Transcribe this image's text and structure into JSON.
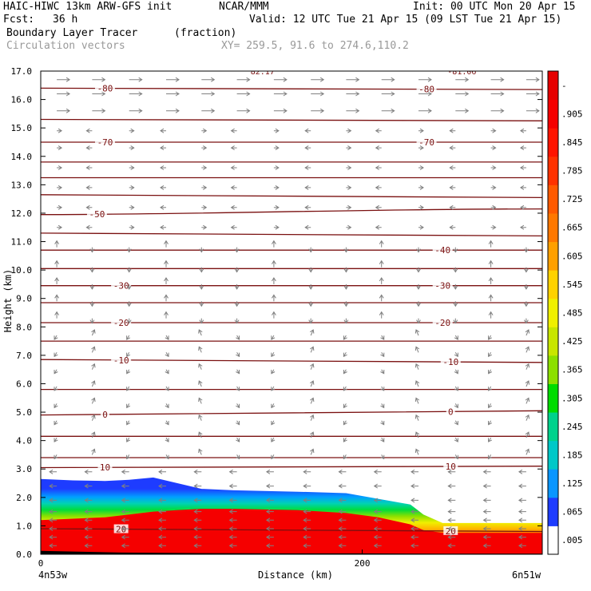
{
  "header": {
    "model": "HAIC-HIWC 13km ARW-GFS init",
    "center": "NCAR/MMM",
    "init": "Init: 00 UTC Mon 20 Apr 15",
    "fcst_label": "Fcst:",
    "fcst_value": "36 h",
    "valid": "Valid: 12 UTC Tue 21 Apr 15 (09 LST Tue 21 Apr 15)",
    "field": "Boundary Layer Tracer",
    "units": "(fraction)",
    "vectors": "Circulation vectors",
    "xy": "XY= 259.5, 91.6 to 274.6,110.2"
  },
  "chart_data": {
    "type": "heatmap",
    "title": "Boundary Layer Tracer",
    "units": "(fraction)",
    "xlabel": "Distance (km)",
    "ylabel": "Height (km)",
    "xlim": [
      0,
      312
    ],
    "ylim": [
      0,
      17
    ],
    "x_ticks": [
      {
        "value": 0,
        "label": "0"
      },
      {
        "value": 200,
        "label": "200"
      }
    ],
    "x_end_labels": {
      "left": "4n53w",
      "right": "6n51w"
    },
    "y_ticks": [
      0,
      1,
      2,
      3,
      4,
      5,
      6,
      7,
      8,
      9,
      10,
      11,
      12,
      13,
      14,
      15,
      16,
      17
    ],
    "y_tick_labels": [
      "0.0",
      "1.0",
      "2.0",
      "3.0",
      "4.0",
      "5.0",
      "6.0",
      "7.0",
      "8.0",
      "9.0",
      "10.0",
      "11.0",
      "12.0",
      "13.0",
      "14.0",
      "15.0",
      "16.0",
      "17.0"
    ],
    "colorbar": {
      "labels": [
        ".005",
        ".065",
        ".125",
        ".185",
        ".245",
        ".305",
        ".365",
        ".425",
        ".485",
        ".545",
        ".605",
        ".665",
        ".725",
        ".785",
        ".845",
        ".905",
        "-"
      ],
      "colors": [
        "#ffffff",
        "#1e3cff",
        "#0a96ff",
        "#00c8c8",
        "#00d28c",
        "#00dc00",
        "#8ce000",
        "#c8e600",
        "#f0f000",
        "#ffd200",
        "#ffa000",
        "#ff7800",
        "#ff5a00",
        "#ff3200",
        "#ff1400",
        "#f50000",
        "#e60000"
      ]
    },
    "tracer_top": {
      "x": [
        0,
        20,
        40,
        55,
        70,
        85,
        100,
        120,
        160,
        190,
        210,
        230,
        238,
        250,
        280,
        312
      ],
      "h": [
        2.65,
        2.6,
        2.58,
        2.62,
        2.7,
        2.5,
        2.3,
        2.25,
        2.2,
        2.15,
        1.95,
        1.75,
        1.4,
        1.1,
        1.1,
        1.1
      ]
    },
    "red_top": {
      "x": [
        0,
        20,
        40,
        55,
        70,
        85,
        100,
        120,
        160,
        190,
        210,
        230,
        238,
        250,
        280,
        312
      ],
      "h": [
        1.2,
        1.25,
        1.3,
        1.4,
        1.5,
        1.55,
        1.6,
        1.6,
        1.55,
        1.45,
        1.3,
        1.05,
        0.85,
        0.75,
        0.75,
        0.75
      ]
    },
    "terrain": {
      "x": [
        0,
        50,
        100,
        150,
        200,
        250,
        312
      ],
      "h": [
        0.12,
        0.06,
        0.04,
        0.03,
        0.03,
        0.02,
        0.02
      ]
    },
    "isotherms": [
      {
        "h1": 16.4,
        "h2": 16.35,
        "label": "-80",
        "lx": [
          40,
          240
        ]
      },
      {
        "h1": 15.3,
        "h2": 15.25
      },
      {
        "h1": 14.5,
        "h2": 14.5,
        "label": "-70",
        "lx": [
          40,
          240
        ]
      },
      {
        "h1": 13.8,
        "h2": 13.8
      },
      {
        "h1": 13.25,
        "h2": 13.25
      },
      {
        "h1": 12.65,
        "h2": 12.55
      },
      {
        "h1": 11.95,
        "h2": 12.15,
        "label": "-50",
        "lx": [
          35
        ]
      },
      {
        "h1": 11.3,
        "h2": 11.2
      },
      {
        "h1": 10.7,
        "h2": 10.7,
        "label": "-40",
        "lx": [
          250
        ]
      },
      {
        "h1": 10.05,
        "h2": 10.05
      },
      {
        "h1": 9.45,
        "h2": 9.45,
        "label": "-30",
        "lx": [
          50,
          250
        ]
      },
      {
        "h1": 8.85,
        "h2": 8.85
      },
      {
        "h1": 8.15,
        "h2": 8.15,
        "label": "-20",
        "lx": [
          50,
          250
        ]
      },
      {
        "h1": 7.5,
        "h2": 7.5
      },
      {
        "h1": 6.85,
        "h2": 6.75,
        "label": "-10",
        "lx": [
          50,
          255
        ]
      },
      {
        "h1": 5.8,
        "h2": 5.8
      },
      {
        "h1": 4.9,
        "h2": 5.05,
        "label": "0",
        "lx": [
          40,
          255
        ]
      },
      {
        "h1": 4.15,
        "h2": 4.15
      },
      {
        "h1": 3.4,
        "h2": 3.4
      },
      {
        "h1": 3.05,
        "h2": 3.1,
        "label": "10",
        "lx": [
          40,
          255
        ]
      },
      {
        "h1": 0.9,
        "h2": 0.8,
        "label": "20",
        "lx": [
          50,
          255
        ]
      }
    ],
    "top_labels": [
      {
        "x": 138,
        "label": "82.17"
      },
      {
        "x": 262,
        "label": "-81.06"
      }
    ],
    "vector_columns_x": [
      10,
      32,
      55,
      78,
      100,
      122,
      145,
      168,
      190,
      212,
      235,
      258,
      280,
      302
    ],
    "vector_levels": [
      16.7,
      16.2,
      15.6,
      14.9,
      14.3,
      13.6,
      12.9,
      12.2,
      11.5,
      10.8,
      10.1,
      9.5,
      8.9,
      8.3,
      7.7,
      7.1,
      6.5,
      5.9,
      5.3,
      4.7,
      4.1,
      3.5,
      2.9,
      2.4,
      1.9,
      1.5,
      1.2,
      0.9,
      0.6,
      0.3
    ],
    "colors": {
      "isotherm": "#7a1010",
      "vector": "#808080",
      "blue": "#1e3cff",
      "red": "#f50000"
    }
  }
}
